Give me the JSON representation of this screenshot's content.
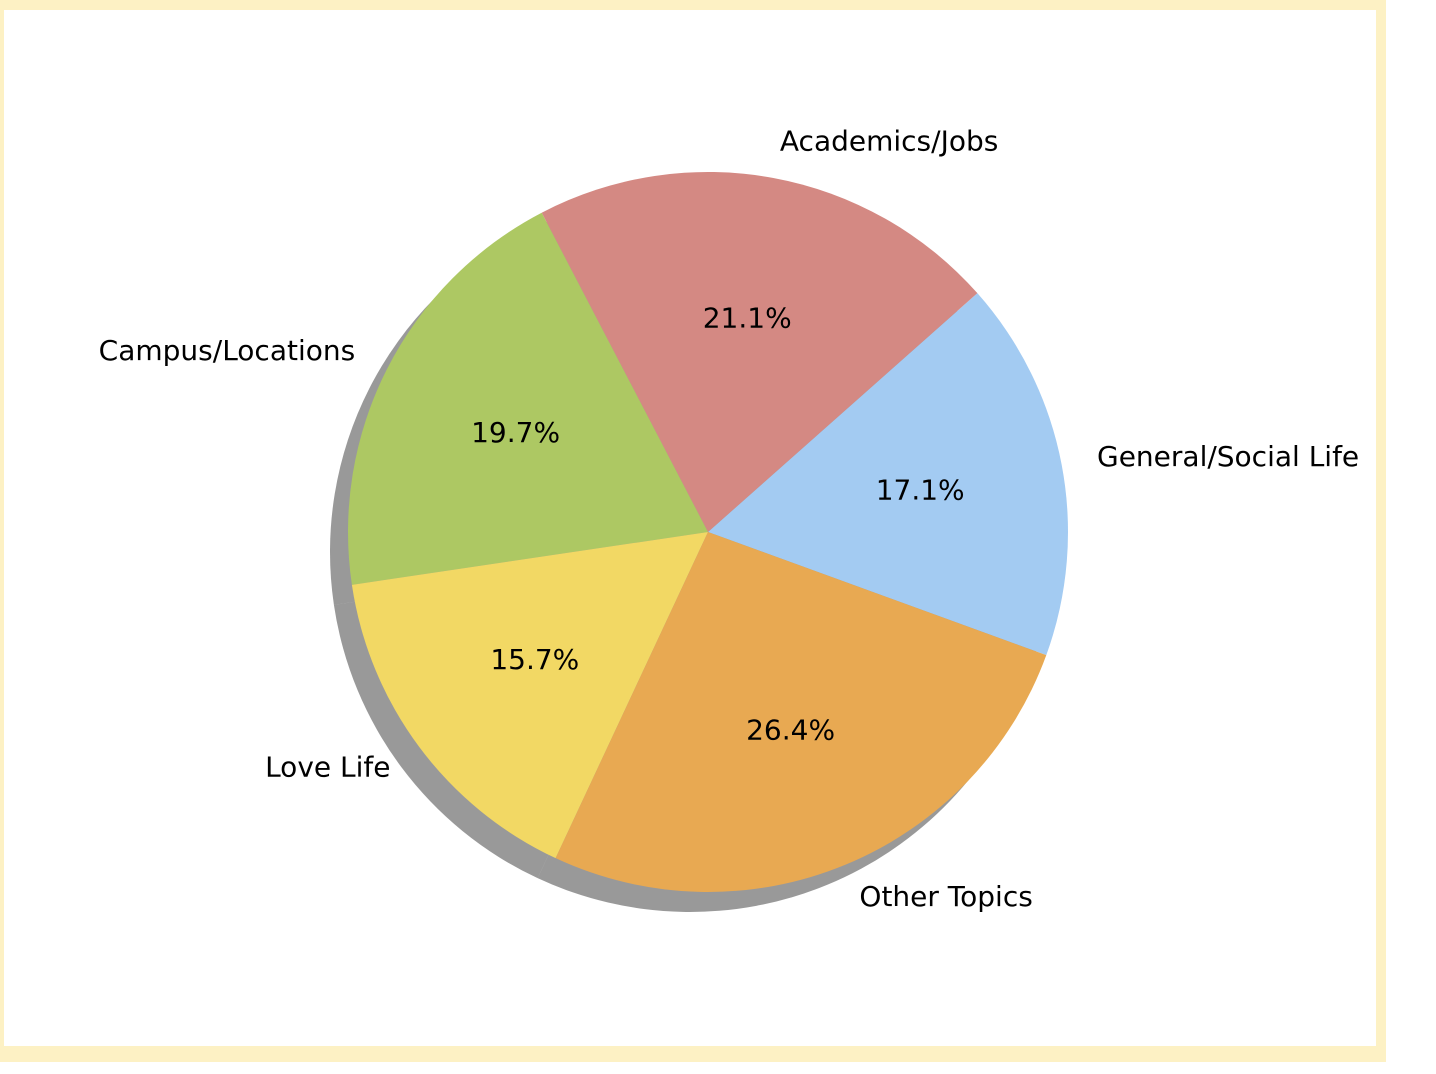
{
  "chart_data": {
    "type": "pie",
    "slices": [
      {
        "label": "General/Social Life",
        "value": 17.1,
        "pct_label": "17.1%",
        "color": "#a3cbf2"
      },
      {
        "label": "Academics/Jobs",
        "value": 21.1,
        "pct_label": "21.1%",
        "color": "#d48983"
      },
      {
        "label": "Campus/Locations",
        "value": 19.7,
        "pct_label": "19.7%",
        "color": "#adc863"
      },
      {
        "label": "Love Life",
        "value": 15.7,
        "pct_label": "15.7%",
        "color": "#f2d864"
      },
      {
        "label": "Other Topics",
        "value": 26.4,
        "pct_label": "26.4%",
        "color": "#e8a952"
      }
    ],
    "shadow": true,
    "frame_color": "#fdf1c4"
  }
}
